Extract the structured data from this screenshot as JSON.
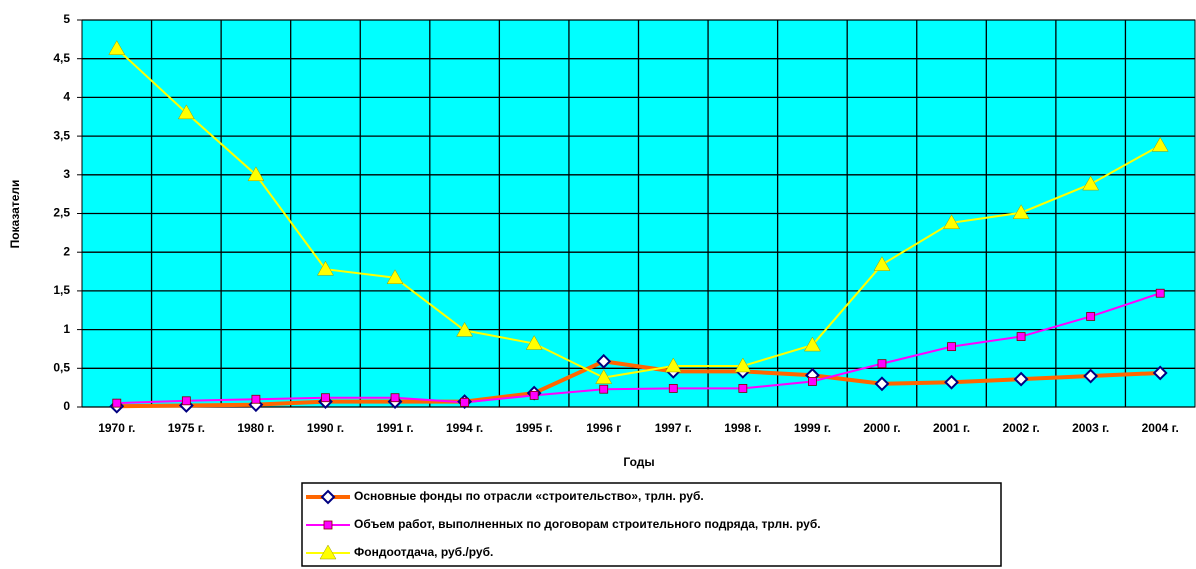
{
  "chart_data": {
    "type": "line",
    "x_label": "Годы",
    "y_label": "Показатели",
    "categories": [
      "1970 г.",
      "1975 г.",
      "1980 г.",
      "1990 г.",
      "1991 г.",
      "1994 г.",
      "1995 г.",
      "1996 г",
      "1997 г.",
      "1998 г.",
      "1999 г.",
      "2000 г.",
      "2001 г.",
      "2002 г.",
      "2003 г.",
      "2004 г."
    ],
    "series": [
      {
        "name": "Основные фонды по отрасли «строительство», трлн. руб.",
        "color": "#ff6600",
        "marker": "diamond",
        "values": [
          0.01,
          0.02,
          0.03,
          0.07,
          0.07,
          0.07,
          0.18,
          0.59,
          0.46,
          0.46,
          0.41,
          0.3,
          0.32,
          0.36,
          0.4,
          0.44
        ]
      },
      {
        "name": "Объем работ, выполненных по договорам строительного подряда, трлн. руб.",
        "color": "#ff00ff",
        "marker": "square",
        "values": [
          0.05,
          0.08,
          0.1,
          0.12,
          0.12,
          0.06,
          0.15,
          0.23,
          0.24,
          0.24,
          0.33,
          0.56,
          0.78,
          0.91,
          1.17,
          1.47
        ]
      },
      {
        "name": "Фондоотдача, руб./руб.",
        "color": "#ffff00",
        "marker": "triangle",
        "values": [
          4.63,
          3.8,
          3.0,
          1.78,
          1.67,
          0.99,
          0.82,
          0.38,
          0.53,
          0.53,
          0.8,
          1.84,
          2.38,
          2.51,
          2.88,
          3.38
        ]
      }
    ],
    "ylim": [
      0,
      5
    ],
    "yticks": [
      0,
      {
        "value": 0.5,
        "label": "0,5"
      },
      1,
      {
        "value": 1.5,
        "label": "1,5"
      },
      2,
      {
        "value": 2.5,
        "label": "2,5"
      },
      3,
      {
        "value": 3.5,
        "label": "3,5"
      },
      4,
      {
        "value": 4.5,
        "label": "4,5"
      },
      5
    ],
    "grid": true,
    "plot_background": "#00ffff",
    "legend": "bottom"
  }
}
